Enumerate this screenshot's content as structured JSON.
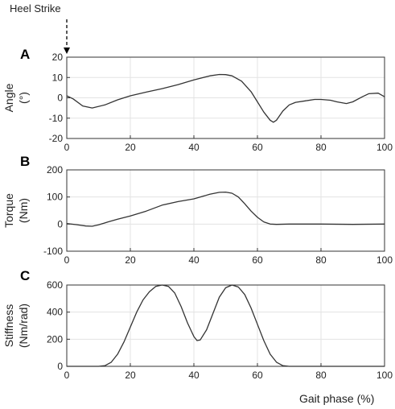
{
  "figure": {
    "annotation": "Heel Strike",
    "xlabel": "Gait phase (%)"
  },
  "chart_data": [
    {
      "type": "line",
      "panel": "A",
      "ylabel": [
        "Angle",
        "(°)"
      ],
      "xlim": [
        0,
        100
      ],
      "ylim": [
        -20,
        20
      ],
      "xticks": [
        0,
        20,
        40,
        60,
        80,
        100
      ],
      "yticks": [
        -20,
        -10,
        0,
        10,
        20
      ],
      "grid": true,
      "series": [
        {
          "x": [
            0,
            2,
            5,
            8,
            12,
            16,
            20,
            25,
            30,
            35,
            40,
            45,
            48,
            50,
            52,
            55,
            58,
            60,
            62,
            64,
            65,
            66,
            68,
            70,
            72,
            75,
            78,
            80,
            83,
            85,
            88,
            90,
            93,
            95,
            98,
            100
          ],
          "y": [
            1,
            -0.5,
            -4,
            -5,
            -3.5,
            -1,
            1,
            2.8,
            4.5,
            6.5,
            8.8,
            10.8,
            11.5,
            11.4,
            10.8,
            8.2,
            3,
            -2,
            -7,
            -11,
            -12,
            -11,
            -6.5,
            -3.5,
            -2.2,
            -1.5,
            -0.8,
            -0.8,
            -1.2,
            -2,
            -2.8,
            -2,
            0.5,
            2,
            2.3,
            0.5
          ]
        }
      ]
    },
    {
      "type": "line",
      "panel": "B",
      "ylabel": [
        "Torque",
        "(Nm)"
      ],
      "xlim": [
        0,
        100
      ],
      "ylim": [
        -100,
        200
      ],
      "xticks": [
        0,
        20,
        40,
        60,
        80,
        100
      ],
      "yticks": [
        -100,
        0,
        100,
        200
      ],
      "grid": true,
      "series": [
        {
          "x": [
            0,
            3,
            6,
            8,
            10,
            13,
            16,
            20,
            25,
            30,
            35,
            40,
            45,
            48,
            50,
            52,
            54,
            56,
            58,
            60,
            62,
            64,
            66,
            70,
            80,
            90,
            100
          ],
          "y": [
            2,
            -2,
            -7,
            -8,
            -3,
            8,
            18,
            30,
            48,
            70,
            83,
            93,
            110,
            117,
            118,
            114,
            100,
            75,
            48,
            25,
            8,
            0,
            -1,
            0,
            0,
            -1,
            0
          ]
        }
      ]
    },
    {
      "type": "line",
      "panel": "C",
      "ylabel": [
        "Stiffness",
        "(Nm/rad)"
      ],
      "xlim": [
        0,
        100
      ],
      "ylim": [
        0,
        600
      ],
      "xticks": [
        0,
        20,
        40,
        60,
        80,
        100
      ],
      "yticks": [
        0,
        200,
        400,
        600
      ],
      "grid": true,
      "series": [
        {
          "x": [
            0,
            10,
            12,
            14,
            16,
            18,
            20,
            22,
            24,
            26,
            28,
            30,
            32,
            34,
            36,
            38,
            40,
            41,
            42,
            44,
            46,
            48,
            50,
            52,
            54,
            56,
            58,
            60,
            62,
            64,
            66,
            68,
            70,
            80,
            90,
            100
          ],
          "y": [
            0,
            0,
            5,
            30,
            90,
            180,
            290,
            400,
            490,
            550,
            590,
            600,
            590,
            540,
            440,
            320,
            220,
            190,
            195,
            270,
            390,
            510,
            580,
            600,
            585,
            530,
            430,
            310,
            190,
            90,
            30,
            5,
            0,
            0,
            0,
            0
          ]
        }
      ]
    }
  ]
}
